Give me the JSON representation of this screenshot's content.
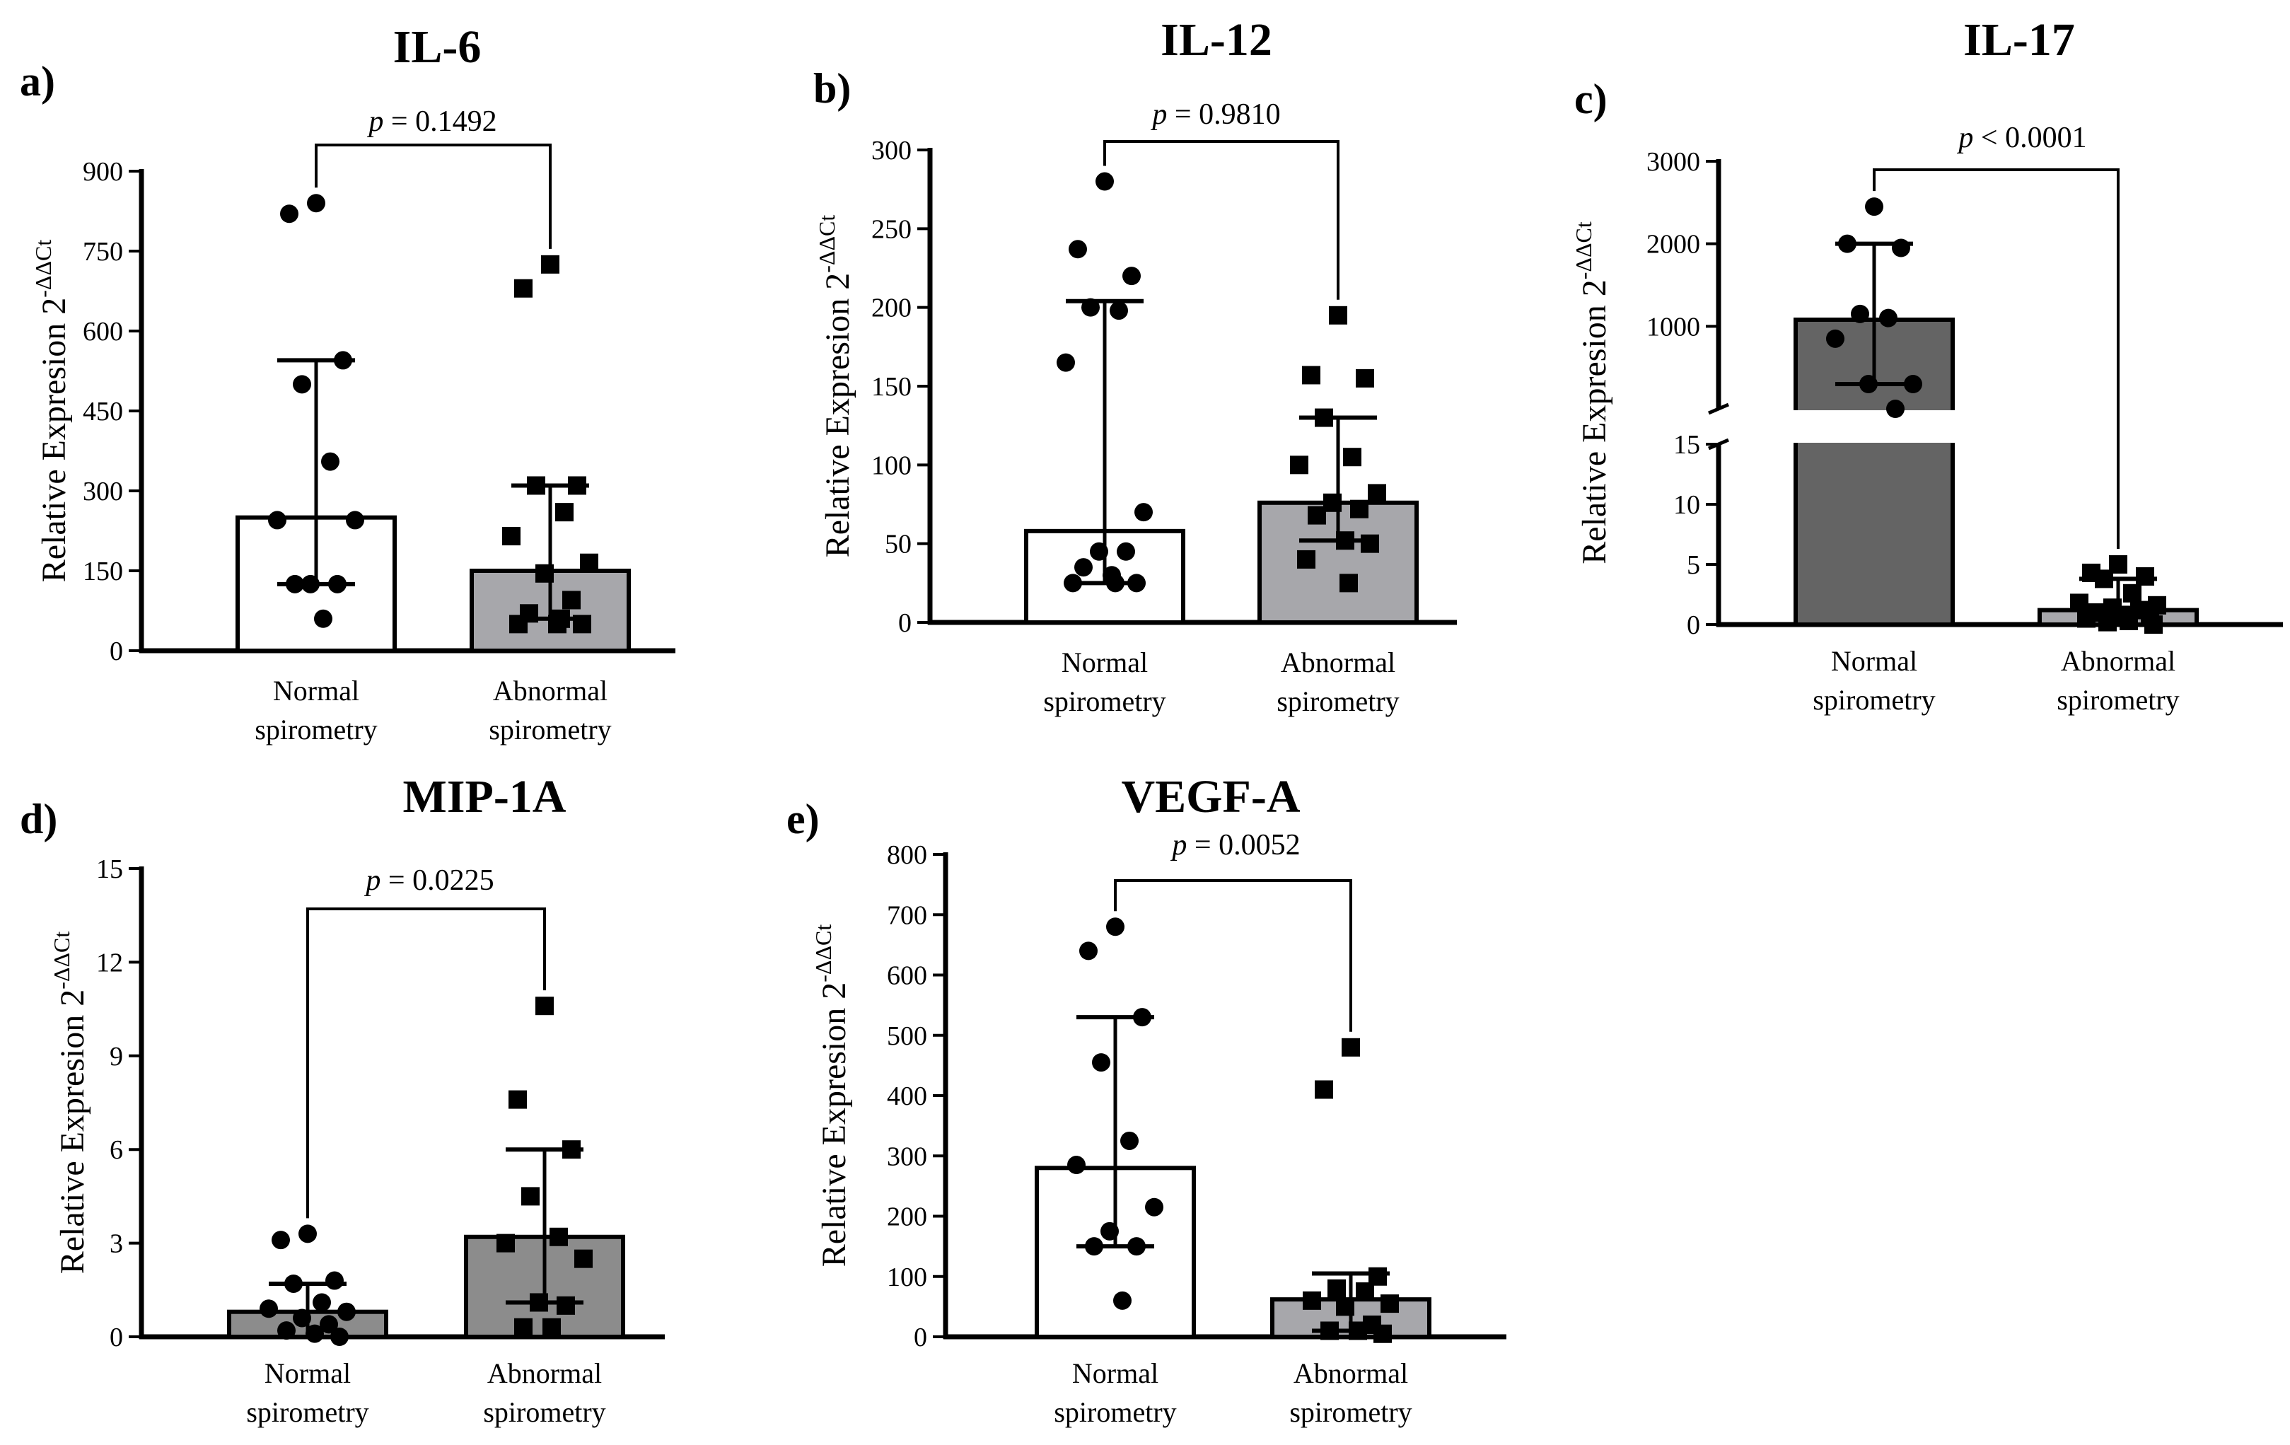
{
  "chart_data": [
    {
      "type": "bar",
      "panel_label": "a)",
      "title": "IL-6",
      "ylabel": "Relative Expresion",
      "ylabel_exp_base": "2",
      "ylabel_exp": "-ΔΔCt",
      "categories": [
        {
          "line1": "Normal",
          "line2": "spirometry"
        },
        {
          "line1": "Abnormal",
          "line2": "spirometry"
        }
      ],
      "ylim": [
        0,
        900
      ],
      "yticks": [
        0,
        150,
        300,
        450,
        600,
        750,
        900
      ],
      "bars": [
        {
          "value": 250,
          "err_low": 125,
          "err_high": 545,
          "fill": "#ffffff",
          "marker": "circle",
          "points": [
            840,
            820,
            545,
            500,
            355,
            245,
            245,
            125,
            125,
            125,
            60
          ]
        },
        {
          "value": 150,
          "err_low": 60,
          "err_high": 310,
          "fill": "#a7a7ab",
          "marker": "square",
          "points": [
            725,
            680,
            310,
            310,
            260,
            215,
            165,
            145,
            95,
            70,
            50,
            50,
            50,
            60
          ]
        }
      ],
      "p_label": "p",
      "p_text": " = 0.1492"
    },
    {
      "type": "bar",
      "panel_label": "b)",
      "title": "IL-12",
      "ylabel": "Relative Expresion",
      "ylabel_exp_base": "2",
      "ylabel_exp": "-ΔΔCt",
      "categories": [
        {
          "line1": "Normal",
          "line2": "spirometry"
        },
        {
          "line1": "Abnormal",
          "line2": "spirometry"
        }
      ],
      "ylim": [
        0,
        300
      ],
      "yticks": [
        0,
        50,
        100,
        150,
        200,
        250,
        300
      ],
      "bars": [
        {
          "value": 58,
          "err_low": 25,
          "err_high": 204,
          "fill": "#ffffff",
          "marker": "circle",
          "points": [
            280,
            237,
            220,
            200,
            198,
            165,
            70,
            45,
            45,
            35,
            30,
            25,
            25,
            25
          ]
        },
        {
          "value": 76,
          "err_low": 52,
          "err_high": 130,
          "fill": "#a7a7ab",
          "marker": "square",
          "points": [
            195,
            157,
            155,
            130,
            105,
            100,
            82,
            76,
            72,
            68,
            52,
            50,
            40,
            25
          ]
        }
      ],
      "p_label": "p",
      "p_text": " = 0.9810"
    },
    {
      "type": "bar",
      "panel_label": "c)",
      "title": "IL-17",
      "ylabel": "Relative Expresion",
      "ylabel_exp_base": "2",
      "ylabel_exp": "-ΔΔCt",
      "categories": [
        {
          "line1": "Normal",
          "line2": "spirometry"
        },
        {
          "line1": "Abnormal",
          "line2": "spirometry"
        }
      ],
      "broken_axis": true,
      "lower_range": [
        0,
        15
      ],
      "upper_range": [
        0,
        3000
      ],
      "yticks_lower": [
        0,
        5,
        10,
        15
      ],
      "yticks_upper": [
        1000,
        2000,
        3000
      ],
      "bars": [
        {
          "value": 1080,
          "err_low": 300,
          "err_high": 2000,
          "fill": "#646464",
          "marker": "circle",
          "points": [
            2450,
            2000,
            1950,
            1150,
            1100,
            850,
            300,
            300,
            0
          ]
        },
        {
          "value": 1.2,
          "err_low": 0,
          "err_high": 3.8,
          "fill": "#a7a7ab",
          "marker": "square",
          "points": [
            5.0,
            4.3,
            4.0,
            3.8,
            2.6,
            1.8,
            1.6,
            1.4,
            1.2,
            1.0,
            0.8,
            0.6,
            0.5,
            0.3,
            0.2,
            0.0
          ]
        }
      ],
      "p_label": "p",
      "p_text": " < 0.0001"
    },
    {
      "type": "bar",
      "panel_label": "d)",
      "title": "MIP-1A",
      "ylabel": "Relative Expresion",
      "ylabel_exp_base": "2",
      "ylabel_exp": "-ΔΔCt",
      "categories": [
        {
          "line1": "Normal",
          "line2": "spirometry"
        },
        {
          "line1": "Abnormal",
          "line2": "spirometry"
        }
      ],
      "ylim": [
        0,
        15
      ],
      "yticks": [
        0,
        3,
        6,
        9,
        12,
        15
      ],
      "bars": [
        {
          "value": 0.8,
          "err_low": 0,
          "err_high": 1.7,
          "fill": "#8c8c8c",
          "marker": "circle",
          "points": [
            3.3,
            3.1,
            1.8,
            1.7,
            1.1,
            0.9,
            0.8,
            0.6,
            0.4,
            0.2,
            0.1,
            0.0
          ]
        },
        {
          "value": 3.2,
          "err_low": 1.1,
          "err_high": 6.0,
          "fill": "#8c8c8c",
          "marker": "square",
          "points": [
            10.6,
            7.6,
            6.0,
            4.5,
            3.2,
            3.0,
            2.5,
            1.1,
            1.0,
            0.3,
            0.3
          ]
        }
      ],
      "p_label": "p",
      "p_text": " = 0.0225"
    },
    {
      "type": "bar",
      "panel_label": "e)",
      "title": "VEGF-A",
      "ylabel": "Relative Expresion",
      "ylabel_exp_base": "2",
      "ylabel_exp": "-ΔΔCt",
      "categories": [
        {
          "line1": "Normal",
          "line2": "spirometry"
        },
        {
          "line1": "Abnormal",
          "line2": "spirometry"
        }
      ],
      "ylim": [
        0,
        800
      ],
      "yticks": [
        0,
        100,
        200,
        300,
        400,
        500,
        600,
        700,
        800
      ],
      "bars": [
        {
          "value": 280,
          "err_low": 150,
          "err_high": 530,
          "fill": "#ffffff",
          "marker": "circle",
          "points": [
            680,
            640,
            530,
            455,
            325,
            285,
            215,
            175,
            150,
            150,
            60
          ]
        },
        {
          "value": 62,
          "err_low": 10,
          "err_high": 105,
          "fill": "#a7a7ab",
          "marker": "square",
          "points": [
            480,
            410,
            100,
            80,
            75,
            60,
            55,
            50,
            20,
            10,
            10,
            5
          ]
        }
      ],
      "p_label": "p",
      "p_text": " = 0.0052"
    }
  ]
}
